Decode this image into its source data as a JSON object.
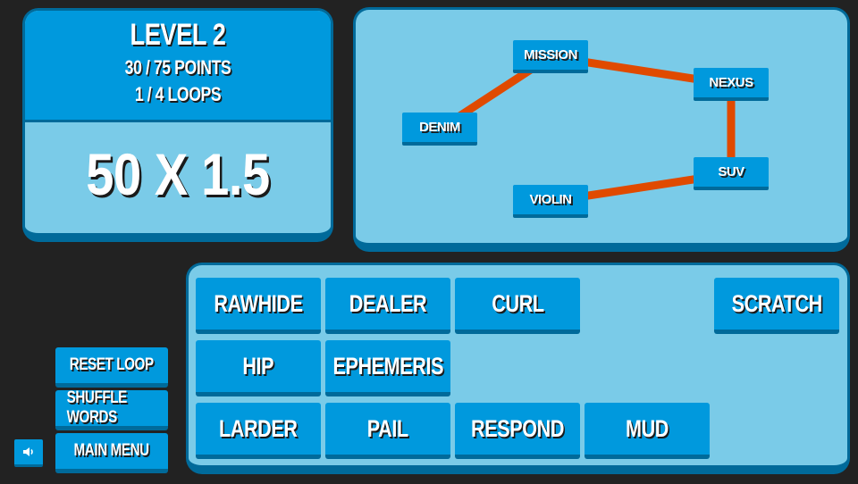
{
  "score": {
    "level": "Level 2",
    "points": "30 / 75 Points",
    "loops": "1 / 4 Loops",
    "multiplier": "50 X 1.5"
  },
  "graph": {
    "nodes": [
      {
        "id": "mission",
        "label": "Mission"
      },
      {
        "id": "nexus",
        "label": "Nexus"
      },
      {
        "id": "denim",
        "label": "Denim"
      },
      {
        "id": "suv",
        "label": "Suv"
      },
      {
        "id": "violin",
        "label": "Violin"
      }
    ],
    "edges": [
      [
        "denim",
        "mission"
      ],
      [
        "mission",
        "nexus"
      ],
      [
        "nexus",
        "suv"
      ],
      [
        "suv",
        "violin"
      ]
    ],
    "edge_color": "#e04a00"
  },
  "words": [
    {
      "label": "Rawhide"
    },
    {
      "label": "Dealer"
    },
    {
      "label": "Curl"
    },
    {
      "label": "Scratch"
    },
    {
      "label": "Hip"
    },
    {
      "label": "Ephemeris"
    },
    {
      "label": "Larder"
    },
    {
      "label": "Pail"
    },
    {
      "label": "Respond"
    },
    {
      "label": "Mud"
    }
  ],
  "buttons": {
    "reset": "Reset Loop",
    "shuffle": "Shuffle Words",
    "menu": "Main Menu",
    "sound_icon": "speaker-icon"
  },
  "colors": {
    "panel": "#7acbe8",
    "tile": "#0099dd",
    "border": "#006a9a",
    "background": "#222222"
  }
}
